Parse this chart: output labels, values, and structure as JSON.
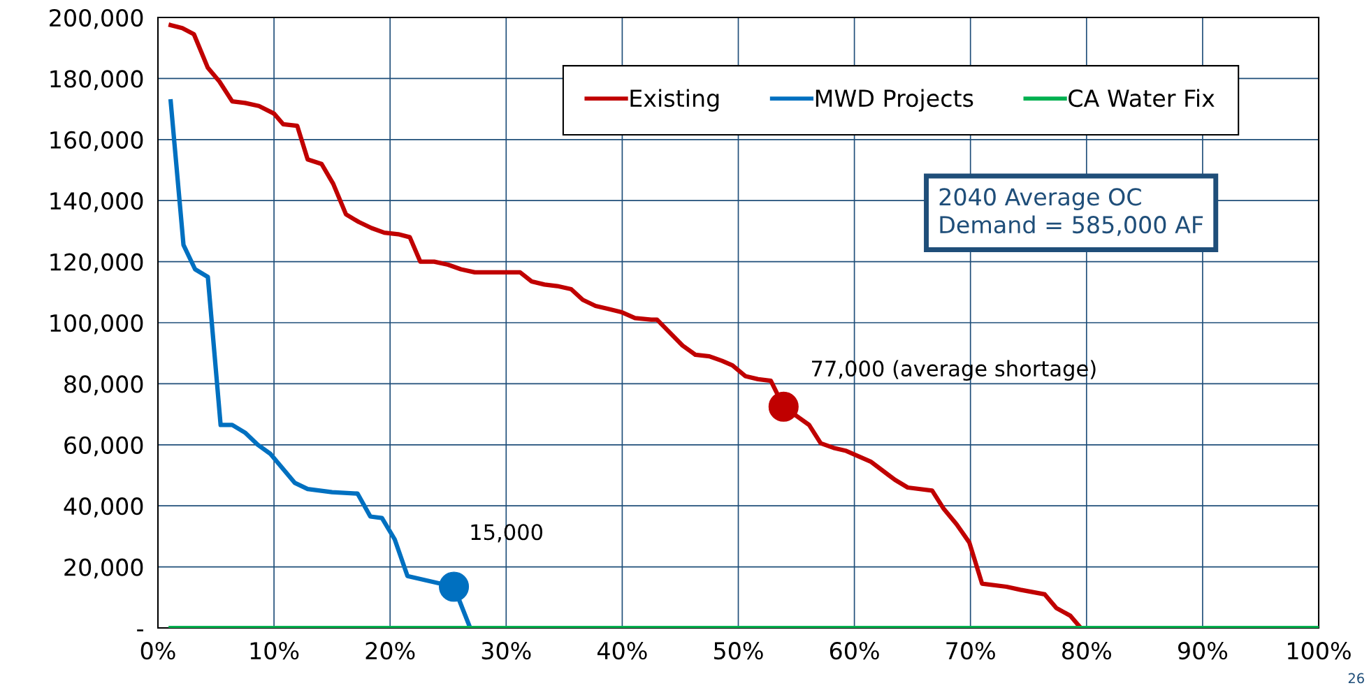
{
  "chart_data": {
    "type": "line",
    "xlim": [
      0,
      100
    ],
    "xticks": [
      {
        "value": 0,
        "label": "0%"
      },
      {
        "value": 10,
        "label": "10%"
      },
      {
        "value": 20,
        "label": "20%"
      },
      {
        "value": 30,
        "label": "30%"
      },
      {
        "value": 40,
        "label": "40%"
      },
      {
        "value": 50,
        "label": "50%"
      },
      {
        "value": 60,
        "label": "60%"
      },
      {
        "value": 70,
        "label": "70%"
      },
      {
        "value": 80,
        "label": "80%"
      },
      {
        "value": 90,
        "label": "90%"
      },
      {
        "value": 100,
        "label": "100%"
      }
    ],
    "ylim": [
      0,
      200000
    ],
    "yticks": [
      {
        "value": 0,
        "label": "-"
      },
      {
        "value": 20000,
        "label": "20,000"
      },
      {
        "value": 40000,
        "label": "40,000"
      },
      {
        "value": 60000,
        "label": "60,000"
      },
      {
        "value": 80000,
        "label": "80,000"
      },
      {
        "value": 100000,
        "label": "100,000"
      },
      {
        "value": 120000,
        "label": "120,000"
      },
      {
        "value": 140000,
        "label": "140,000"
      },
      {
        "value": 160000,
        "label": "160,000"
      },
      {
        "value": 180000,
        "label": "180,000"
      },
      {
        "value": 200000,
        "label": "200,000"
      }
    ],
    "grid": true,
    "legend": "top",
    "series": [
      {
        "name": "Existing",
        "color": "#c00000",
        "x": [
          1.1,
          2.1,
          3.1,
          4.3,
          5.3,
          6.4,
          7.5,
          8.7,
          10.0,
          10.8,
          12.0,
          12.9,
          14.1,
          15.1,
          16.2,
          17.3,
          18.4,
          19.5,
          20.7,
          21.7,
          22.6,
          23.8,
          25.0,
          26.1,
          27.3,
          28.9,
          31.2,
          32.2,
          33.3,
          34.4,
          35.6,
          36.6,
          37.7,
          38.8,
          39.9,
          41.1,
          42.5,
          43.0,
          45.2,
          46.3,
          47.5,
          48.6,
          49.5,
          50.6,
          51.7,
          52.8,
          53.9,
          56.1,
          57.1,
          58.2,
          59.3,
          61.4,
          63.5,
          64.6,
          66.7,
          67.7,
          68.8,
          69.9,
          71.0,
          73.1,
          74.3,
          76.4,
          77.4,
          78.6,
          79.5
        ],
        "values": [
          197500,
          196500,
          194500,
          183500,
          179000,
          172500,
          172000,
          171000,
          168500,
          165000,
          164500,
          153500,
          152000,
          145500,
          135500,
          133000,
          131000,
          129500,
          129000,
          128000,
          120000,
          120000,
          119000,
          117500,
          116500,
          116500,
          116500,
          113500,
          112500,
          112000,
          111000,
          107500,
          105500,
          104500,
          103500,
          101500,
          101000,
          101000,
          92500,
          89500,
          89000,
          87500,
          86000,
          82500,
          81500,
          81000,
          72500,
          66500,
          60500,
          59000,
          58000,
          54500,
          48500,
          46000,
          45000,
          39000,
          34000,
          28000,
          14500,
          13500,
          12500,
          11000,
          6500,
          4000,
          0
        ]
      },
      {
        "name": "MWD Projects",
        "color": "#0070c0",
        "x": [
          1.1,
          2.2,
          3.2,
          4.3,
          5.4,
          6.4,
          7.5,
          8.6,
          9.7,
          10.8,
          11.8,
          12.9,
          15.0,
          17.2,
          18.3,
          19.3,
          20.4,
          21.5,
          25.5,
          26.9
        ],
        "values": [
          172500,
          125500,
          117500,
          115000,
          66500,
          66500,
          64000,
          60000,
          57000,
          52000,
          47500,
          45500,
          44500,
          44000,
          36500,
          36000,
          29000,
          17000,
          13500,
          0
        ]
      },
      {
        "name": "CA Water Fix",
        "color": "#00b050",
        "x": [
          1.1,
          100
        ],
        "values": [
          0,
          0
        ]
      },
      {
        "type": "scatter",
        "marker": "circle",
        "color": "#c00000",
        "x": [
          53.9
        ],
        "values": [
          72500
        ]
      },
      {
        "type": "scatter",
        "marker": "circle",
        "color": "#0070c0",
        "x": [
          25.5
        ],
        "values": [
          13500
        ]
      }
    ],
    "annotations": [
      "2040 Average OC\nDemand = 585,000 AF",
      "77,000 (average shortage)",
      "15,000",
      "26"
    ]
  }
}
